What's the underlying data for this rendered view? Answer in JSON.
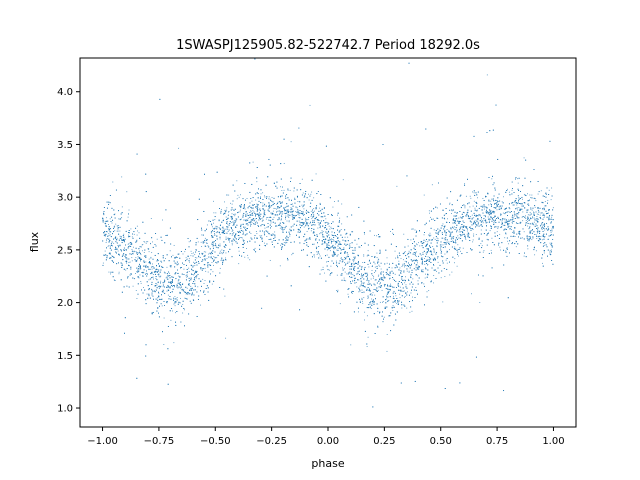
{
  "chart_data": {
    "type": "scatter",
    "title": "1SWASPJ125905.82-522742.7 Period 18292.0s",
    "xlabel": "phase",
    "ylabel": "flux",
    "xlim": [
      -1.1,
      1.1
    ],
    "ylim": [
      0.82,
      4.32
    ],
    "x_ticks": [
      -1.0,
      -0.75,
      -0.5,
      -0.25,
      0.0,
      0.25,
      0.5,
      0.75,
      1.0
    ],
    "x_tick_labels": [
      "−1.00",
      "−0.75",
      "−0.50",
      "−0.25",
      "0.00",
      "0.25",
      "0.50",
      "0.75",
      "1.00"
    ],
    "y_ticks": [
      1.0,
      1.5,
      2.0,
      2.5,
      3.0,
      3.5,
      4.0
    ],
    "y_tick_labels": [
      "1.0",
      "1.5",
      "2.0",
      "2.5",
      "3.0",
      "3.5",
      "4.0"
    ],
    "grid": false,
    "legend": "none",
    "marker_color": "#1f77b4",
    "series": [
      {
        "x": [
          -1.0,
          -0.95,
          -0.9,
          -0.85,
          -0.8,
          -0.75,
          -0.7,
          -0.65,
          -0.6,
          -0.55,
          -0.5,
          -0.45,
          -0.4,
          -0.35,
          -0.3,
          -0.25,
          -0.2,
          -0.15,
          -0.1,
          -0.05,
          0.0,
          0.05,
          0.1,
          0.15,
          0.2,
          0.25,
          0.3,
          0.35,
          0.4,
          0.45,
          0.5,
          0.55,
          0.6,
          0.65,
          0.7,
          0.75,
          0.8,
          0.85,
          0.9,
          0.95,
          1.0
        ],
        "y": [
          2.68,
          2.6,
          2.5,
          2.4,
          2.3,
          2.22,
          2.18,
          2.2,
          2.3,
          2.42,
          2.55,
          2.66,
          2.74,
          2.79,
          2.81,
          2.82,
          2.82,
          2.81,
          2.78,
          2.72,
          2.63,
          2.5,
          2.36,
          2.24,
          2.16,
          2.15,
          2.18,
          2.26,
          2.38,
          2.5,
          2.6,
          2.68,
          2.74,
          2.78,
          2.8,
          2.82,
          2.82,
          2.8,
          2.77,
          2.73,
          2.69
        ],
        "spread": [
          0.22,
          0.22,
          0.22,
          0.22,
          0.23,
          0.24,
          0.25,
          0.24,
          0.23,
          0.22,
          0.21,
          0.2,
          0.2,
          0.2,
          0.2,
          0.2,
          0.2,
          0.2,
          0.2,
          0.2,
          0.21,
          0.22,
          0.23,
          0.24,
          0.25,
          0.25,
          0.24,
          0.23,
          0.22,
          0.21,
          0.2,
          0.2,
          0.2,
          0.2,
          0.2,
          0.2,
          0.2,
          0.2,
          0.2,
          0.21,
          0.22
        ]
      }
    ]
  }
}
